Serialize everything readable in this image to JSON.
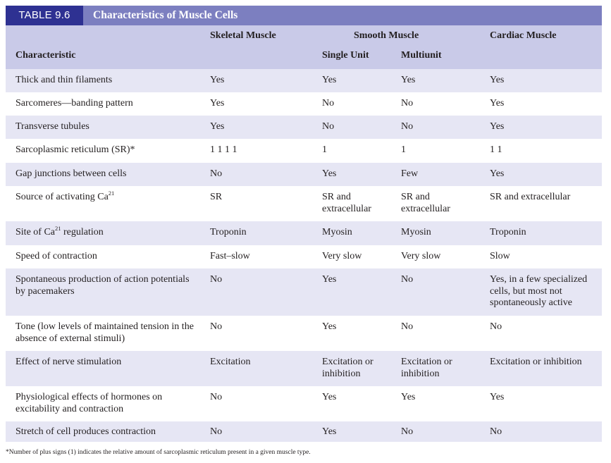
{
  "title": {
    "table_number": "TABLE 9.6",
    "caption": "Characteristics of Muscle Cells"
  },
  "headers": {
    "characteristic": "Characteristic",
    "skeletal": "Skeletal Muscle",
    "smooth": "Smooth Muscle",
    "single_unit": "Single Unit",
    "multiunit": "Multiunit",
    "cardiac": "Cardiac Muscle"
  },
  "rows": [
    {
      "characteristic": "Thick and thin filaments",
      "skeletal": "Yes",
      "single_unit": "Yes",
      "multiunit": "Yes",
      "cardiac": "Yes"
    },
    {
      "characteristic": "Sarcomeres—banding pattern",
      "skeletal": "Yes",
      "single_unit": "No",
      "multiunit": "No",
      "cardiac": "Yes"
    },
    {
      "characteristic": "Transverse tubules",
      "skeletal": "Yes",
      "single_unit": "No",
      "multiunit": "No",
      "cardiac": "Yes"
    },
    {
      "characteristic": "Sarcoplasmic reticulum (SR)*",
      "skeletal": "1 1 1 1",
      "single_unit": "1",
      "multiunit": "1",
      "cardiac": "1 1"
    },
    {
      "characteristic": "Gap junctions between cells",
      "skeletal": "No",
      "single_unit": "Yes",
      "multiunit": "Few",
      "cardiac": "Yes"
    },
    {
      "characteristic": "Source of activating Ca",
      "characteristic_sup": "21",
      "skeletal": "SR",
      "single_unit": "SR and extracellular",
      "multiunit": "SR and extracellular",
      "cardiac": "SR and extracellular"
    },
    {
      "characteristic": "Site of Ca",
      "characteristic_sup": "21",
      "characteristic_tail": " regulation",
      "skeletal": "Troponin",
      "single_unit": "Myosin",
      "multiunit": "Myosin",
      "cardiac": "Troponin"
    },
    {
      "characteristic": "Speed of contraction",
      "skeletal": "Fast–slow",
      "single_unit": "Very slow",
      "multiunit": "Very slow",
      "cardiac": "Slow"
    },
    {
      "characteristic": "Spontaneous production of action potentials by pacemakers",
      "skeletal": "No",
      "single_unit": "Yes",
      "multiunit": "No",
      "cardiac": "Yes, in a few specialized cells, but most not spontaneously active"
    },
    {
      "characteristic": "Tone (low levels of maintained tension in the absence of external stimuli)",
      "skeletal": "No",
      "single_unit": "Yes",
      "multiunit": "No",
      "cardiac": "No"
    },
    {
      "characteristic": "Effect of nerve stimulation",
      "skeletal": "Excitation",
      "single_unit": "Excitation or inhibition",
      "multiunit": "Excitation or inhibition",
      "cardiac": "Excitation or inhibition"
    },
    {
      "characteristic": "Physiological effects of hormones on excitability and contraction",
      "skeletal": "No",
      "single_unit": "Yes",
      "multiunit": "Yes",
      "cardiac": "Yes"
    },
    {
      "characteristic": "Stretch of cell produces contraction",
      "skeletal": "No",
      "single_unit": "Yes",
      "multiunit": "No",
      "cardiac": "No"
    }
  ],
  "footnote": "*Number of plus signs (1) indicates the relative amount of sarcoplasmic reticulum present in a given muscle type."
}
